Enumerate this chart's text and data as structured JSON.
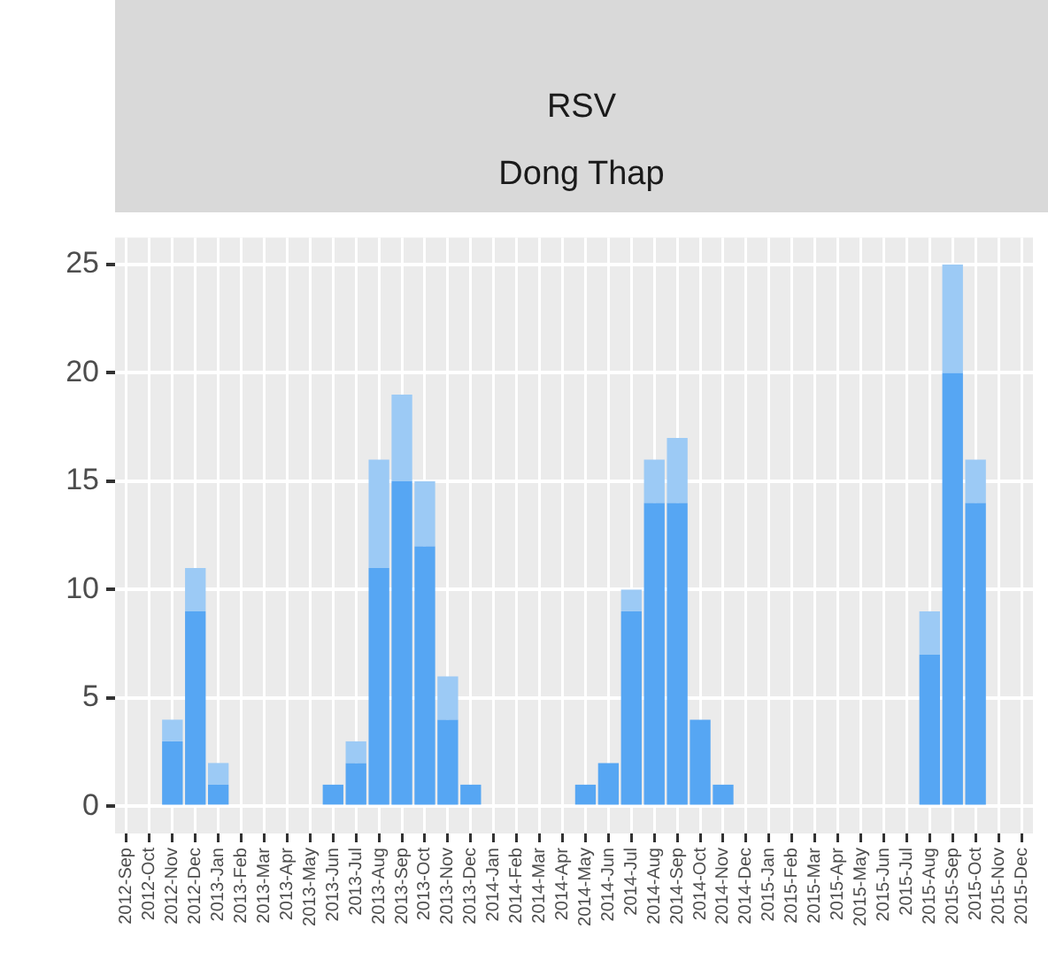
{
  "chart_data": {
    "type": "bar",
    "title": "RSV",
    "subtitle": "Dong Thap",
    "categories": [
      "2012-Sep",
      "2012-Oct",
      "2012-Nov",
      "2012-Dec",
      "2013-Jan",
      "2013-Feb",
      "2013-Mar",
      "2013-Apr",
      "2013-May",
      "2013-Jun",
      "2013-Jul",
      "2013-Aug",
      "2013-Sep",
      "2013-Oct",
      "2013-Nov",
      "2013-Dec",
      "2014-Jan",
      "2014-Feb",
      "2014-Mar",
      "2014-Apr",
      "2014-May",
      "2014-Jun",
      "2014-Jul",
      "2014-Aug",
      "2014-Sep",
      "2014-Oct",
      "2014-Nov",
      "2014-Dec",
      "2015-Jan",
      "2015-Feb",
      "2015-Mar",
      "2015-Apr",
      "2015-May",
      "2015-Jun",
      "2015-Jul",
      "2015-Aug",
      "2015-Sep",
      "2015-Oct",
      "2015-Nov",
      "2015-Dec"
    ],
    "series": [
      {
        "color": "#56a6f3",
        "values": [
          0,
          0,
          3,
          9,
          1,
          0,
          0,
          0,
          0,
          1,
          2,
          11,
          15,
          12,
          4,
          1,
          0,
          0,
          0,
          0,
          1,
          2,
          9,
          14,
          14,
          4,
          1,
          0,
          0,
          0,
          0,
          0,
          0,
          0,
          0,
          7,
          20,
          14,
          0,
          0
        ]
      },
      {
        "color": "#9ccaf5",
        "values": [
          0,
          0,
          1,
          2,
          1,
          0,
          0,
          0,
          0,
          0,
          1,
          5,
          4,
          3,
          2,
          0,
          0,
          0,
          0,
          0,
          0,
          0,
          1,
          2,
          3,
          0,
          0,
          0,
          0,
          0,
          0,
          0,
          0,
          0,
          0,
          2,
          5,
          2,
          0,
          0
        ]
      }
    ],
    "stacked": true,
    "ylim": [
      -1.25,
      26.25
    ],
    "yticks": [
      0,
      5,
      10,
      15,
      20,
      25
    ],
    "grid": true
  }
}
